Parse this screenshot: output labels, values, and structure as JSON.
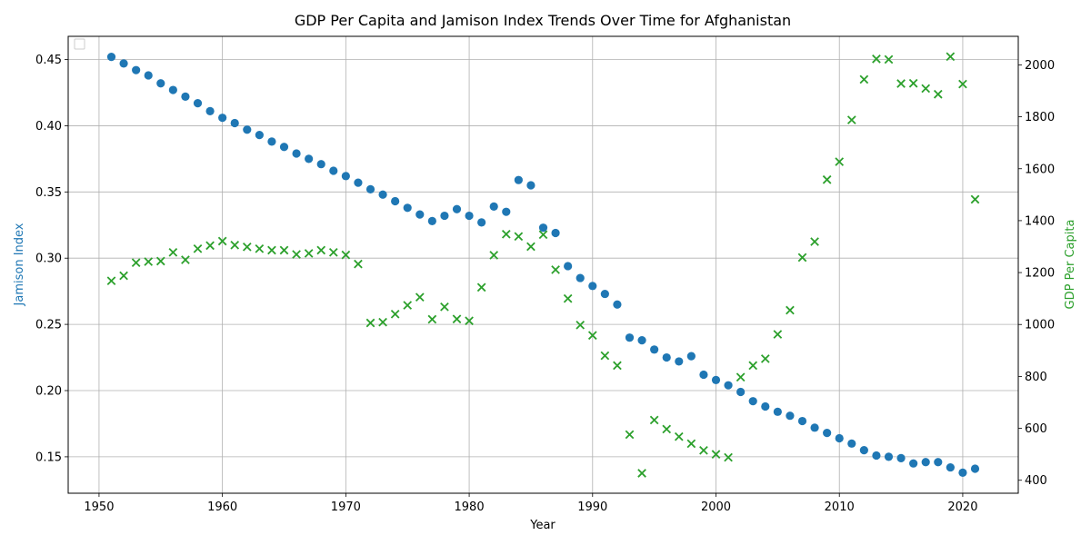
{
  "chart_data": {
    "type": "scatter",
    "title": "GDP Per Capita and Jamison Index Trends Over Time for Afghanistan",
    "xlabel": "Year",
    "ylabel_left": "Jamison Index",
    "ylabel_right": "GDP Per Capita",
    "xlim": [
      1947.5,
      2024.5
    ],
    "ylim_left": [
      0.1225,
      0.4675
    ],
    "ylim_right": [
      350,
      2110
    ],
    "x_ticks": [
      1950,
      1960,
      1970,
      1980,
      1990,
      2000,
      2010,
      2020
    ],
    "y_left_ticks": [
      0.15,
      0.2,
      0.25,
      0.3,
      0.35,
      0.4,
      0.45
    ],
    "y_right_ticks": [
      400,
      600,
      800,
      1000,
      1200,
      1400,
      1600,
      1800,
      2000
    ],
    "grid": true,
    "legend": "top-left (empty)",
    "colors": {
      "jamison": "#1f77b4",
      "gdp": "#2ca02c"
    },
    "series": [
      {
        "axis": "left",
        "marker": "circle",
        "points": [
          [
            1951,
            0.452
          ],
          [
            1952,
            0.447
          ],
          [
            1953,
            0.442
          ],
          [
            1954,
            0.438
          ],
          [
            1955,
            0.432
          ],
          [
            1956,
            0.427
          ],
          [
            1957,
            0.422
          ],
          [
            1958,
            0.417
          ],
          [
            1959,
            0.411
          ],
          [
            1960,
            0.406
          ],
          [
            1961,
            0.402
          ],
          [
            1962,
            0.397
          ],
          [
            1963,
            0.393
          ],
          [
            1964,
            0.388
          ],
          [
            1965,
            0.384
          ],
          [
            1966,
            0.379
          ],
          [
            1967,
            0.375
          ],
          [
            1968,
            0.371
          ],
          [
            1969,
            0.366
          ],
          [
            1970,
            0.362
          ],
          [
            1971,
            0.357
          ],
          [
            1972,
            0.352
          ],
          [
            1973,
            0.348
          ],
          [
            1974,
            0.343
          ],
          [
            1975,
            0.338
          ],
          [
            1976,
            0.333
          ],
          [
            1977,
            0.328
          ],
          [
            1978,
            0.332
          ],
          [
            1979,
            0.337
          ],
          [
            1980,
            0.332
          ],
          [
            1981,
            0.327
          ],
          [
            1982,
            0.339
          ],
          [
            1983,
            0.335
          ],
          [
            1984,
            0.359
          ],
          [
            1985,
            0.355
          ],
          [
            1986,
            0.323
          ],
          [
            1987,
            0.319
          ],
          [
            1988,
            0.294
          ],
          [
            1989,
            0.285
          ],
          [
            1990,
            0.279
          ],
          [
            1991,
            0.273
          ],
          [
            1992,
            0.265
          ],
          [
            1993,
            0.24
          ],
          [
            1994,
            0.238
          ],
          [
            1995,
            0.231
          ],
          [
            1996,
            0.225
          ],
          [
            1997,
            0.222
          ],
          [
            1998,
            0.226
          ],
          [
            1999,
            0.212
          ],
          [
            2000,
            0.208
          ],
          [
            2001,
            0.204
          ],
          [
            2002,
            0.199
          ],
          [
            2003,
            0.192
          ],
          [
            2004,
            0.188
          ],
          [
            2005,
            0.184
          ],
          [
            2006,
            0.181
          ],
          [
            2007,
            0.177
          ],
          [
            2008,
            0.172
          ],
          [
            2009,
            0.168
          ],
          [
            2010,
            0.164
          ],
          [
            2011,
            0.16
          ],
          [
            2012,
            0.155
          ],
          [
            2013,
            0.151
          ],
          [
            2014,
            0.15
          ],
          [
            2015,
            0.149
          ],
          [
            2016,
            0.145
          ],
          [
            2017,
            0.146
          ],
          [
            2018,
            0.146
          ],
          [
            2019,
            0.142
          ],
          [
            2020,
            0.138
          ],
          [
            2021,
            0.141
          ]
        ]
      },
      {
        "axis": "right",
        "marker": "x",
        "points": [
          [
            1951,
            1168
          ],
          [
            1952,
            1188
          ],
          [
            1953,
            1238
          ],
          [
            1954,
            1242
          ],
          [
            1955,
            1244
          ],
          [
            1956,
            1278
          ],
          [
            1957,
            1249
          ],
          [
            1958,
            1292
          ],
          [
            1959,
            1304
          ],
          [
            1960,
            1321
          ],
          [
            1961,
            1306
          ],
          [
            1962,
            1299
          ],
          [
            1963,
            1292
          ],
          [
            1964,
            1286
          ],
          [
            1965,
            1286
          ],
          [
            1966,
            1270
          ],
          [
            1967,
            1274
          ],
          [
            1968,
            1286
          ],
          [
            1969,
            1278
          ],
          [
            1970,
            1268
          ],
          [
            1971,
            1233
          ],
          [
            1972,
            1006
          ],
          [
            1973,
            1009
          ],
          [
            1974,
            1040
          ],
          [
            1975,
            1074
          ],
          [
            1976,
            1105
          ],
          [
            1977,
            1020
          ],
          [
            1978,
            1068
          ],
          [
            1979,
            1021
          ],
          [
            1980,
            1014
          ],
          [
            1981,
            1143
          ],
          [
            1982,
            1267
          ],
          [
            1983,
            1348
          ],
          [
            1984,
            1339
          ],
          [
            1985,
            1300
          ],
          [
            1986,
            1346
          ],
          [
            1987,
            1211
          ],
          [
            1988,
            1100
          ],
          [
            1989,
            998
          ],
          [
            1990,
            958
          ],
          [
            1991,
            880
          ],
          [
            1992,
            842
          ],
          [
            1993,
            576
          ],
          [
            1994,
            427
          ],
          [
            1995,
            632
          ],
          [
            1996,
            597
          ],
          [
            1997,
            568
          ],
          [
            1998,
            541
          ],
          [
            1999,
            515
          ],
          [
            2000,
            500
          ],
          [
            2001,
            488
          ],
          [
            2002,
            797
          ],
          [
            2003,
            842
          ],
          [
            2004,
            868
          ],
          [
            2005,
            962
          ],
          [
            2006,
            1055
          ],
          [
            2007,
            1258
          ],
          [
            2008,
            1319
          ],
          [
            2009,
            1558
          ],
          [
            2010,
            1627
          ],
          [
            2011,
            1788
          ],
          [
            2012,
            1944
          ],
          [
            2013,
            2023
          ],
          [
            2014,
            2021
          ],
          [
            2015,
            1928
          ],
          [
            2016,
            1929
          ],
          [
            2017,
            1909
          ],
          [
            2018,
            1887
          ],
          [
            2019,
            2032
          ],
          [
            2020,
            1926
          ],
          [
            2021,
            1482
          ]
        ]
      }
    ]
  }
}
